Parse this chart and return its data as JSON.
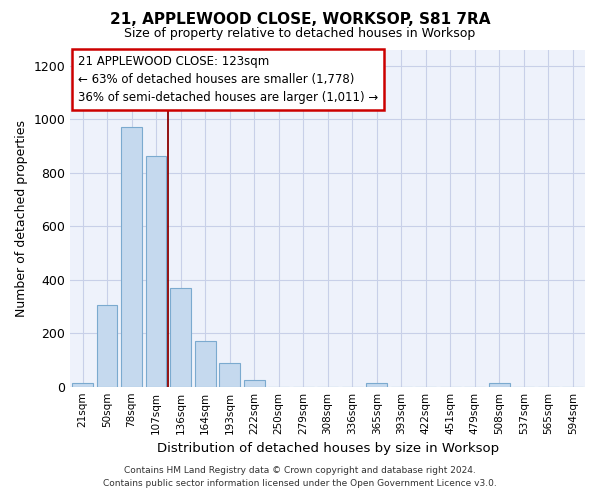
{
  "title": "21, APPLEWOOD CLOSE, WORKSOP, S81 7RA",
  "subtitle": "Size of property relative to detached houses in Worksop",
  "xlabel": "Distribution of detached houses by size in Worksop",
  "ylabel": "Number of detached properties",
  "bar_color": "#c5d9ee",
  "bar_edge_color": "#7baacf",
  "annotation_line1": "21 APPLEWOOD CLOSE: 123sqm",
  "annotation_line2": "← 63% of detached houses are smaller (1,778)",
  "annotation_line3": "36% of semi-detached houses are larger (1,011) →",
  "categories": [
    "21sqm",
    "50sqm",
    "78sqm",
    "107sqm",
    "136sqm",
    "164sqm",
    "193sqm",
    "222sqm",
    "250sqm",
    "279sqm",
    "308sqm",
    "336sqm",
    "365sqm",
    "393sqm",
    "422sqm",
    "451sqm",
    "479sqm",
    "508sqm",
    "537sqm",
    "565sqm",
    "594sqm"
  ],
  "values": [
    15,
    305,
    970,
    865,
    370,
    170,
    88,
    25,
    0,
    0,
    0,
    0,
    13,
    0,
    0,
    0,
    0,
    14,
    0,
    0,
    0
  ],
  "ylim": [
    0,
    1260
  ],
  "yticks": [
    0,
    200,
    400,
    600,
    800,
    1000,
    1200
  ],
  "property_line_x": 3.5,
  "footer_line1": "Contains HM Land Registry data © Crown copyright and database right 2024.",
  "footer_line2": "Contains public sector information licensed under the Open Government Licence v3.0.",
  "background_color": "#eef2fb",
  "grid_color": "#c8d0e8",
  "property_line_color": "#8b0000"
}
